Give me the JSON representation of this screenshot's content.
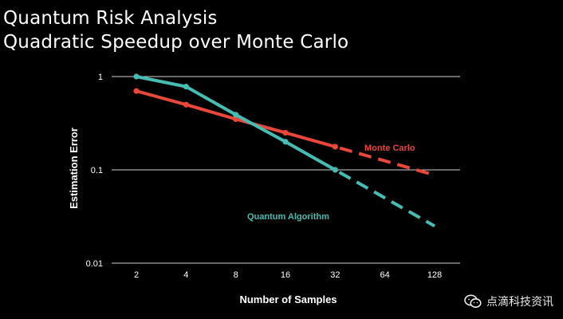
{
  "title": {
    "line1": "Quantum Risk Analysis",
    "line2": "Quadratic Speedup over Monte Carlo"
  },
  "watermark": {
    "text": "点滴科技资讯",
    "icon": "wechat-icon"
  },
  "colors": {
    "background": "#000000",
    "grid": "#cfcfcf",
    "monte_carlo": "#e8473a",
    "quantum": "#45bdb3",
    "text": "#ffffff"
  },
  "chart_data": {
    "type": "line",
    "xlabel": "Number of Samples",
    "ylabel": "Estimation Error",
    "yscale": "log",
    "ylim": [
      0.01,
      1
    ],
    "yticks": [
      {
        "value": 1,
        "label": "1"
      },
      {
        "value": 0.1,
        "label": "0.1"
      },
      {
        "value": 0.01,
        "label": "0.01"
      }
    ],
    "xscale": "log2",
    "xticks": [
      "2",
      "4",
      "8",
      "16",
      "32",
      "64",
      "128"
    ],
    "grid": true,
    "series": [
      {
        "name": "Monte Carlo",
        "color": "#e8473a",
        "points": [
          {
            "x": 2,
            "y": 0.7
          },
          {
            "x": 4,
            "y": 0.5
          },
          {
            "x": 8,
            "y": 0.35
          },
          {
            "x": 16,
            "y": 0.25
          },
          {
            "x": 32,
            "y": 0.177
          }
        ],
        "projected": [
          {
            "x": 32,
            "y": 0.177
          },
          {
            "x": 128,
            "y": 0.088
          }
        ]
      },
      {
        "name": "Quantum Algorithm",
        "color": "#45bdb3",
        "points": [
          {
            "x": 2,
            "y": 1.0
          },
          {
            "x": 4,
            "y": 0.78
          },
          {
            "x": 8,
            "y": 0.39
          },
          {
            "x": 16,
            "y": 0.2
          },
          {
            "x": 32,
            "y": 0.1
          }
        ],
        "projected": [
          {
            "x": 32,
            "y": 0.1
          },
          {
            "x": 128,
            "y": 0.025
          }
        ]
      }
    ]
  }
}
